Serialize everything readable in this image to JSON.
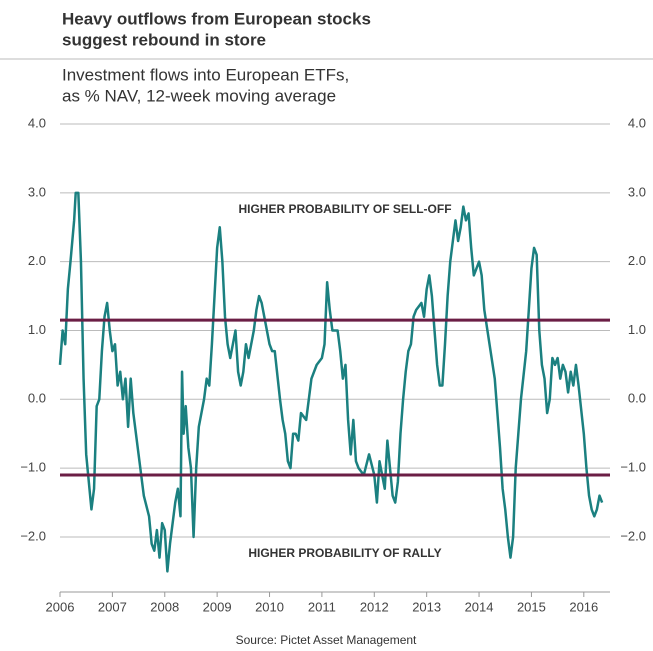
{
  "chart_data": {
    "type": "line",
    "title": "Heavy outflows from European stocks suggest rebound in store",
    "title_lines": [
      "Heavy outflows from European stocks",
      "suggest rebound in store"
    ],
    "subtitle_lines": [
      "Investment flows into European ETFs,",
      "as % NAV, 12-week moving average"
    ],
    "source": "Source: Pictet Asset Management",
    "annotations": [
      "HIGHER PROBABILITY OF SELL-OFF",
      "HIGHER PROBABILITY OF RALLY"
    ],
    "annotation_values": [
      3.0,
      -2.0
    ],
    "reference_lines": [
      1.15,
      -1.1
    ],
    "reference_color": "#6b1e45",
    "color": "#1b8080",
    "xlim": [
      2006,
      2016.5
    ],
    "xticks": [
      2006,
      2007,
      2008,
      2009,
      2010,
      2011,
      2012,
      2013,
      2014,
      2015,
      2016
    ],
    "ylim": [
      -2.8,
      4.0
    ],
    "yticks": [
      {
        "value": -2,
        "label": "−2.0"
      },
      {
        "value": -1,
        "label": "−1.0"
      },
      {
        "value": 0,
        "label": "0.0"
      },
      {
        "value": 1,
        "label": "1.0"
      },
      {
        "value": 2,
        "label": "2.0"
      },
      {
        "value": 3,
        "label": "3.0"
      },
      {
        "value": 4,
        "label": "4.0"
      }
    ],
    "grid": true,
    "x": [
      2006.0,
      2006.05,
      2006.1,
      2006.15,
      2006.2,
      2006.27,
      2006.3,
      2006.35,
      2006.4,
      2006.45,
      2006.5,
      2006.55,
      2006.6,
      2006.65,
      2006.7,
      2006.75,
      2006.8,
      2006.85,
      2006.9,
      2006.95,
      2007.0,
      2007.05,
      2007.1,
      2007.15,
      2007.2,
      2007.25,
      2007.3,
      2007.35,
      2007.4,
      2007.5,
      2007.6,
      2007.7,
      2007.75,
      2007.8,
      2007.85,
      2007.9,
      2007.95,
      2008.0,
      2008.05,
      2008.1,
      2008.15,
      2008.2,
      2008.25,
      2008.3,
      2008.33,
      2008.36,
      2008.4,
      2008.45,
      2008.5,
      2008.55,
      2008.6,
      2008.65,
      2008.7,
      2008.75,
      2008.8,
      2008.85,
      2008.9,
      2008.95,
      2009.0,
      2009.05,
      2009.1,
      2009.15,
      2009.2,
      2009.25,
      2009.3,
      2009.35,
      2009.4,
      2009.45,
      2009.5,
      2009.55,
      2009.6,
      2009.7,
      2009.75,
      2009.8,
      2009.85,
      2009.9,
      2010.0,
      2010.05,
      2010.1,
      2010.2,
      2010.25,
      2010.3,
      2010.35,
      2010.4,
      2010.45,
      2010.5,
      2010.55,
      2010.6,
      2010.7,
      2010.8,
      2010.9,
      2011.0,
      2011.05,
      2011.1,
      2011.15,
      2011.2,
      2011.3,
      2011.35,
      2011.4,
      2011.45,
      2011.5,
      2011.55,
      2011.6,
      2011.65,
      2011.7,
      2011.8,
      2011.9,
      2012.0,
      2012.05,
      2012.1,
      2012.2,
      2012.25,
      2012.3,
      2012.35,
      2012.4,
      2012.45,
      2012.5,
      2012.55,
      2012.6,
      2012.65,
      2012.7,
      2012.75,
      2012.8,
      2012.9,
      2012.95,
      2013.0,
      2013.05,
      2013.1,
      2013.15,
      2013.2,
      2013.25,
      2013.3,
      2013.35,
      2013.4,
      2013.45,
      2013.5,
      2013.55,
      2013.6,
      2013.65,
      2013.7,
      2013.75,
      2013.8,
      2013.85,
      2013.9,
      2014.0,
      2014.05,
      2014.1,
      2014.2,
      2014.3,
      2014.35,
      2014.4,
      2014.45,
      2014.5,
      2014.55,
      2014.6,
      2014.65,
      2014.7,
      2014.75,
      2014.8,
      2014.9,
      2014.95,
      2015.0,
      2015.05,
      2015.1,
      2015.15,
      2015.2,
      2015.25,
      2015.3,
      2015.35,
      2015.4,
      2015.45,
      2015.5,
      2015.55,
      2015.6,
      2015.65,
      2015.7,
      2015.75,
      2015.8,
      2015.85,
      2015.9,
      2016.0,
      2016.05,
      2016.1,
      2016.15,
      2016.2,
      2016.25,
      2016.3,
      2016.35
    ],
    "values": [
      0.5,
      1.0,
      0.8,
      1.6,
      2.0,
      2.6,
      3.0,
      3.0,
      2.0,
      0.3,
      -0.8,
      -1.2,
      -1.6,
      -1.3,
      -0.1,
      0.0,
      0.7,
      1.2,
      1.4,
      1.0,
      0.7,
      0.8,
      0.2,
      0.4,
      0.0,
      0.3,
      -0.4,
      0.3,
      -0.2,
      -0.8,
      -1.4,
      -1.7,
      -2.1,
      -2.2,
      -1.9,
      -2.3,
      -1.8,
      -1.9,
      -2.5,
      -2.1,
      -1.8,
      -1.5,
      -1.3,
      -1.7,
      0.4,
      -0.5,
      -0.1,
      -0.7,
      -1.0,
      -2.0,
      -1.0,
      -0.4,
      -0.2,
      0.0,
      0.3,
      0.2,
      0.8,
      1.5,
      2.2,
      2.5,
      2.0,
      1.2,
      0.8,
      0.6,
      0.8,
      1.0,
      0.4,
      0.2,
      0.4,
      0.8,
      0.6,
      1.0,
      1.3,
      1.5,
      1.4,
      1.2,
      0.8,
      0.7,
      0.7,
      0.0,
      -0.3,
      -0.5,
      -0.9,
      -1.0,
      -0.5,
      -0.5,
      -0.6,
      -0.2,
      -0.3,
      0.3,
      0.5,
      0.6,
      0.8,
      1.7,
      1.3,
      1.0,
      1.0,
      0.7,
      0.3,
      0.5,
      -0.3,
      -0.8,
      -0.3,
      -0.9,
      -1.0,
      -1.1,
      -0.8,
      -1.1,
      -1.5,
      -0.9,
      -1.3,
      -0.6,
      -1.0,
      -1.4,
      -1.5,
      -1.2,
      -0.5,
      0.0,
      0.4,
      0.7,
      0.8,
      1.2,
      1.3,
      1.4,
      1.2,
      1.6,
      1.8,
      1.5,
      1.0,
      0.5,
      0.2,
      0.2,
      0.8,
      1.5,
      2.0,
      2.3,
      2.6,
      2.3,
      2.5,
      2.8,
      2.6,
      2.7,
      2.2,
      1.8,
      2.0,
      1.8,
      1.3,
      0.8,
      0.3,
      -0.2,
      -0.7,
      -1.3,
      -1.6,
      -2.0,
      -2.3,
      -2.0,
      -1.0,
      -0.5,
      0.0,
      0.7,
      1.3,
      1.9,
      2.2,
      2.1,
      1.0,
      0.5,
      0.3,
      -0.2,
      0.0,
      0.6,
      0.5,
      0.6,
      0.3,
      0.5,
      0.4,
      0.1,
      0.4,
      0.2,
      0.5,
      0.2,
      -0.5,
      -1.0,
      -1.4,
      -1.6,
      -1.7,
      -1.6,
      -1.4,
      -1.5
    ]
  }
}
